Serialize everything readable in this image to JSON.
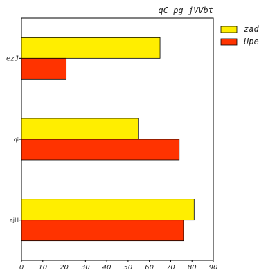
{
  "chart_data": {
    "type": "bar",
    "orientation": "horizontal",
    "title": "qC pg jVVbt",
    "xlabel": "",
    "ylabel": "",
    "categories": [
      "ezJ",
      "qi",
      "ajH"
    ],
    "series": [
      {
        "name": "zad",
        "values": [
          65,
          55,
          81
        ],
        "color": "#ffee00"
      },
      {
        "name": "Upe",
        "values": [
          21,
          74,
          76
        ],
        "color": "#ff3300"
      }
    ],
    "xlim": [
      0,
      90
    ],
    "xticks": [
      0,
      10,
      20,
      30,
      40,
      50,
      60,
      70,
      80,
      90
    ],
    "grid": false,
    "legend_position": "outside-top-right"
  }
}
